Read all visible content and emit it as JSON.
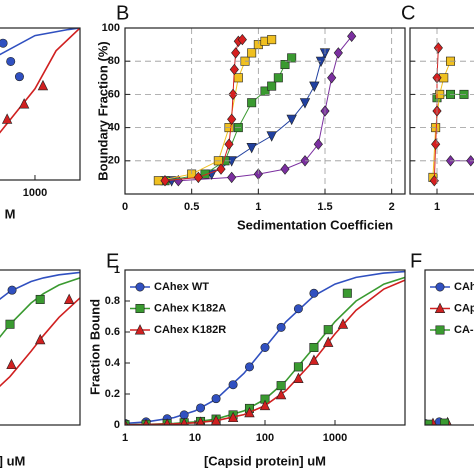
{
  "chart_data": [
    {
      "type": "line",
      "xscale": "log",
      "xlim": [
        100,
        4400
      ],
      "ylim": [
        0,
        1
      ],
      "xticks": [
        1000
      ],
      "xlabel": "M",
      "series": [
        {
          "color": "#3050c0",
          "marker": "circle",
          "x": [
            350,
            450,
            600
          ],
          "values": [
            0.9,
            0.78,
            0.68
          ],
          "curve_x": [
            100,
            300,
            1000,
            3000,
            4400
          ],
          "curve": [
            0.55,
            0.82,
            0.95,
            0.99,
            1
          ]
        },
        {
          "color": "#d02020",
          "marker": "triangle",
          "x": [
            400,
            700,
            1300
          ],
          "values": [
            0.4,
            0.5,
            0.62
          ],
          "curve_x": [
            100,
            300,
            1000,
            2000,
            4400
          ],
          "curve": [
            0.05,
            0.3,
            0.6,
            0.85,
            1
          ]
        }
      ]
    },
    {
      "type": "scatter",
      "label": "B",
      "xlim": [
        0,
        2.1
      ],
      "ylim": [
        0,
        100
      ],
      "xticks": [
        0,
        0.5,
        1,
        1.5,
        2
      ],
      "yticks": [
        20,
        40,
        60,
        80,
        100
      ],
      "grid": true,
      "lines": true,
      "xlabel": "Sedimentation Coefficien",
      "ylabel": "Boundary Fraction (%)",
      "series": [
        {
          "color": "#7b2fa0",
          "marker": "diamond",
          "x": [
            0.4,
            0.8,
            1.0,
            1.2,
            1.35,
            1.45,
            1.5,
            1.55,
            1.6,
            1.7
          ],
          "values": [
            8,
            10,
            12,
            15,
            20,
            30,
            50,
            70,
            85,
            95
          ]
        },
        {
          "color": "#2040a0",
          "marker": "triangle-down",
          "x": [
            0.35,
            0.65,
            0.8,
            0.95,
            1.1,
            1.25,
            1.35,
            1.42,
            1.47,
            1.5
          ],
          "values": [
            8,
            12,
            20,
            28,
            35,
            45,
            55,
            65,
            80,
            85
          ]
        },
        {
          "color": "#3a9a30",
          "marker": "square",
          "x": [
            0.3,
            0.6,
            0.75,
            0.85,
            0.95,
            1.05,
            1.1,
            1.15,
            1.2,
            1.25
          ],
          "values": [
            8,
            12,
            20,
            40,
            55,
            62,
            65,
            70,
            78,
            82
          ]
        },
        {
          "color": "#f0c020",
          "marker": "square",
          "x": [
            0.25,
            0.5,
            0.7,
            0.78,
            0.85,
            0.9,
            0.95,
            1.0,
            1.05,
            1.1
          ],
          "values": [
            8,
            12,
            20,
            40,
            70,
            80,
            85,
            90,
            92,
            93
          ]
        },
        {
          "color": "#d62020",
          "marker": "diamond",
          "x": [
            0.3,
            0.55,
            0.72,
            0.78,
            0.8,
            0.81,
            0.82,
            0.83,
            0.85,
            0.88
          ],
          "values": [
            8,
            10,
            15,
            30,
            45,
            60,
            75,
            85,
            92,
            93
          ]
        }
      ]
    },
    {
      "type": "scatter",
      "label": "C",
      "xlim": [
        0.8,
        1.3
      ],
      "ylim": [
        0,
        100
      ],
      "xticks": [
        1
      ],
      "yticks": [
        20,
        40,
        60,
        80
      ],
      "show_ytick_labels": false,
      "grid": true,
      "lines": true,
      "series": [
        {
          "color": "#7b2fa0",
          "marker": "diamond",
          "x": [
            1.1,
            1.25
          ],
          "values": [
            20,
            20
          ]
        },
        {
          "color": "#3a9a30",
          "marker": "square",
          "x": [
            1.0,
            1.1,
            1.2
          ],
          "values": [
            58,
            60,
            60
          ]
        },
        {
          "color": "#f0c020",
          "marker": "square",
          "x": [
            0.97,
            0.99,
            1.02,
            1.05,
            1.1
          ],
          "values": [
            10,
            40,
            60,
            70,
            80
          ]
        },
        {
          "color": "#d62020",
          "marker": "diamond",
          "x": [
            0.98,
            0.99,
            1.0,
            1.0,
            1.01
          ],
          "values": [
            8,
            30,
            50,
            70,
            88
          ]
        }
      ]
    },
    {
      "type": "line",
      "xscale": "log",
      "xlim": [
        10,
        10000
      ],
      "ylim": [
        0,
        1
      ],
      "xlabel": "] uM",
      "series": [
        {
          "color": "#3050c0",
          "marker": "circle",
          "x": [
            1070
          ],
          "values": [
            0.87
          ],
          "curve_x": [
            300,
            500,
            1000,
            2000,
            3000,
            5000,
            10000
          ],
          "curve": [
            0.652,
            0.758,
            0.862,
            0.926,
            0.949,
            0.969,
            0.984
          ]
        },
        {
          "color": "#3a9a30",
          "marker": "square",
          "x": [
            1000,
            2700
          ],
          "values": [
            0.65,
            0.81
          ],
          "curve_x": [
            300,
            500,
            1000,
            2000,
            3000,
            5000,
            10000
          ],
          "curve": [
            0.357,
            0.481,
            0.649,
            0.787,
            0.847,
            0.903,
            0.949
          ]
        },
        {
          "color": "#d02020",
          "marker": "triangle",
          "x": [
            1050,
            2700,
            7000
          ],
          "values": [
            0.39,
            0.55,
            0.81
          ],
          "curve_x": [
            300,
            500,
            1000,
            2000,
            3000,
            5000,
            10000
          ],
          "curve": [
            0.12,
            0.185,
            0.3125,
            0.476,
            0.577,
            0.694,
            0.82
          ]
        }
      ]
    },
    {
      "type": "line",
      "label": "E",
      "xscale": "log",
      "xlim": [
        1,
        10000
      ],
      "ylim": [
        0,
        1
      ],
      "xticks": [
        1,
        10,
        100,
        1000
      ],
      "yticks": [
        0,
        0.2,
        0.4,
        0.6,
        0.8,
        1
      ],
      "xlabel": "[Capsid protein] uM",
      "ylabel": "Fraction Bound",
      "legend": "upper left",
      "series": [
        {
          "name": "CAhex WT",
          "color": "#3050c0",
          "marker": "circle",
          "x": [
            1,
            2,
            4,
            7,
            12,
            20,
            35,
            60,
            100,
            170,
            300,
            500
          ],
          "values": [
            0.01,
            0.02,
            0.04,
            0.065,
            0.11,
            0.17,
            0.26,
            0.375,
            0.5,
            0.63,
            0.75,
            0.85
          ],
          "curve_x": [
            1,
            2,
            5,
            10,
            20,
            50,
            100,
            200,
            500,
            1000,
            2000,
            5000,
            10000
          ],
          "curve": [
            0.0099,
            0.0196,
            0.0476,
            0.0909,
            0.1667,
            0.3333,
            0.5,
            0.6667,
            0.8333,
            0.9091,
            0.9524,
            0.9804,
            0.9901
          ]
        },
        {
          "name": "CAhex K182A",
          "color": "#3a9a30",
          "marker": "square",
          "x": [
            1,
            2,
            4,
            7,
            12,
            20,
            35,
            60,
            100,
            170,
            300,
            500,
            800,
            1500
          ],
          "values": [
            0.002,
            0.004,
            0.008,
            0.014,
            0.023,
            0.038,
            0.065,
            0.107,
            0.167,
            0.254,
            0.375,
            0.5,
            0.615,
            0.85
          ],
          "curve_x": [
            1,
            2,
            5,
            10,
            20,
            50,
            100,
            200,
            500,
            1000,
            2000,
            5000,
            10000
          ],
          "curve": [
            0.002,
            0.004,
            0.0099,
            0.0196,
            0.0385,
            0.0909,
            0.1667,
            0.2857,
            0.5,
            0.6667,
            0.8,
            0.9091,
            0.9524
          ]
        },
        {
          "name": "CAhex K182R",
          "color": "#d02020",
          "marker": "triangle",
          "x": [
            1,
            2,
            4,
            7,
            12,
            20,
            35,
            60,
            100,
            170,
            300,
            500,
            800,
            1300
          ],
          "values": [
            0.001,
            0.003,
            0.006,
            0.01,
            0.017,
            0.028,
            0.048,
            0.079,
            0.125,
            0.195,
            0.3,
            0.417,
            0.533,
            0.65
          ],
          "curve_x": [
            1,
            2,
            5,
            10,
            20,
            50,
            100,
            200,
            500,
            1000,
            2000,
            5000,
            10000
          ],
          "curve": [
            0.0014,
            0.0029,
            0.0071,
            0.0141,
            0.0278,
            0.0667,
            0.125,
            0.2222,
            0.4167,
            0.5882,
            0.7407,
            0.8772,
            0.9346
          ]
        }
      ]
    },
    {
      "type": "line",
      "label": "F",
      "xscale": "log",
      "xlim": [
        1,
        10000
      ],
      "ylim": [
        0,
        1
      ],
      "legend": "upper left",
      "series": [
        {
          "name": "CAh",
          "color": "#3050c0",
          "marker": "circle",
          "x": [
            1,
            1.6
          ],
          "values": [
            0.01,
            0.02
          ]
        },
        {
          "name": "CAp",
          "color": "#d02020",
          "marker": "triangle",
          "x": [
            1.3,
            2.1
          ],
          "values": [
            0.01,
            0.015
          ]
        },
        {
          "name": "CA-l",
          "color": "#3a9a30",
          "marker": "square",
          "x": [
            1.1,
            1.9
          ],
          "values": [
            0.005,
            0.012
          ]
        }
      ]
    }
  ]
}
